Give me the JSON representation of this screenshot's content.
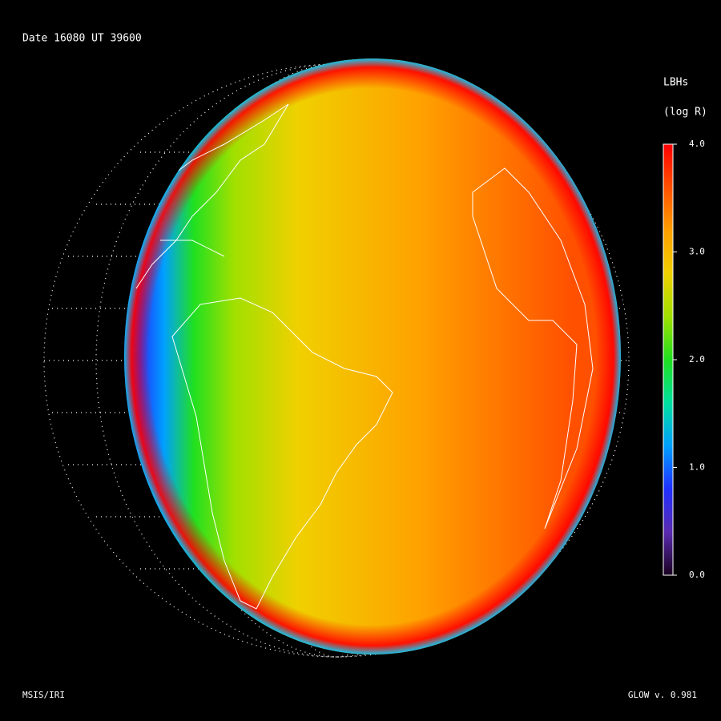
{
  "chart_data": {
    "type": "globe",
    "title": "Date 16080  UT 39600",
    "colorbar_title": "LBHs",
    "colorbar_units": "(log R)",
    "clim": [
      0,
      4
    ],
    "cticks": [
      {
        "value": 0,
        "label": "0.0"
      },
      {
        "value": 1,
        "label": "1.0"
      },
      {
        "value": 2,
        "label": "2.0"
      },
      {
        "value": 3,
        "label": "3.0"
      },
      {
        "value": 4,
        "label": "4.0"
      }
    ],
    "colormap": [
      "#1a0020",
      "#5a2bb0",
      "#2030ff",
      "#00a0ff",
      "#00e0a0",
      "#20e020",
      "#a0e000",
      "#f0d000",
      "#ffa000",
      "#ff5000",
      "#ff0000"
    ],
    "footer_left": "MSIS/IRI",
    "footer_right": "GLOW v. 0.981"
  }
}
